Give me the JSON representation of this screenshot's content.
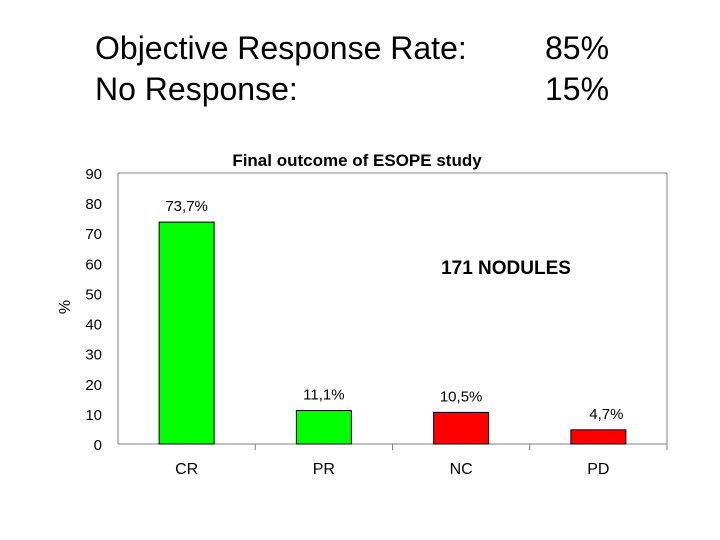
{
  "header": {
    "rows": [
      {
        "label": "Objective Response Rate:",
        "value": "85%"
      },
      {
        "label": "No Response:",
        "value": "15%"
      }
    ]
  },
  "chart_data": {
    "type": "bar",
    "title": "Final outcome of ESOPE study",
    "annotation": "171 NODULES",
    "ylabel": "%",
    "xlabel": "",
    "ylim": [
      0,
      90
    ],
    "yticks": [
      0,
      10,
      20,
      30,
      40,
      50,
      60,
      70,
      80,
      90
    ],
    "categories": [
      "CR",
      "PR",
      "NC",
      "PD"
    ],
    "values": [
      73.7,
      11.1,
      10.5,
      4.7
    ],
    "data_labels": [
      "73,7%",
      "11,1%",
      "10,5%",
      "4,7%"
    ],
    "colors": [
      "#00ff00",
      "#00ff00",
      "#ff0000",
      "#ff0000"
    ],
    "grid": false
  }
}
